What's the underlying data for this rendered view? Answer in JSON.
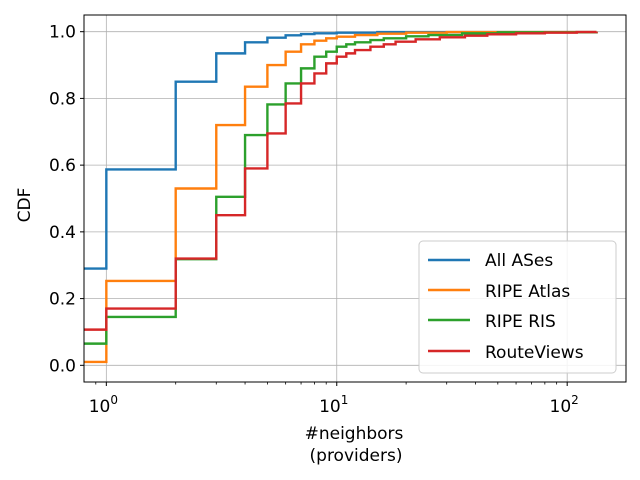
{
  "chart_data": {
    "type": "line",
    "step": "post",
    "xscale": "log",
    "xlabel_line1": "#neighbors",
    "xlabel_line2": "(providers)",
    "ylabel": "CDF",
    "xlim": [
      0.8,
      180
    ],
    "ylim": [
      -0.05,
      1.05
    ],
    "grid": true,
    "legend_position": "lower-right",
    "x_ticks": [
      {
        "value": 1,
        "base": "10",
        "exp": "0"
      },
      {
        "value": 10,
        "base": "10",
        "exp": "1"
      },
      {
        "value": 100,
        "base": "10",
        "exp": "2"
      }
    ],
    "y_ticks": [
      {
        "value": 0.0,
        "label": "0.0"
      },
      {
        "value": 0.2,
        "label": "0.2"
      },
      {
        "value": 0.4,
        "label": "0.4"
      },
      {
        "value": 0.6,
        "label": "0.6"
      },
      {
        "value": 0.8,
        "label": "0.8"
      },
      {
        "value": 1.0,
        "label": "1.0"
      }
    ],
    "series": [
      {
        "name": "All ASes",
        "color": "#1f77b4",
        "points": [
          [
            0.8,
            0.29
          ],
          [
            1,
            0.587
          ],
          [
            2,
            0.85
          ],
          [
            3,
            0.935
          ],
          [
            4,
            0.968
          ],
          [
            5,
            0.982
          ],
          [
            6,
            0.989
          ],
          [
            7,
            0.993
          ],
          [
            8,
            0.995
          ],
          [
            10,
            0.997
          ],
          [
            15,
            0.999
          ],
          [
            134,
            1.0
          ]
        ]
      },
      {
        "name": "RIPE Atlas",
        "color": "#ff7f0e",
        "points": [
          [
            0.8,
            0.01
          ],
          [
            1,
            0.253
          ],
          [
            2,
            0.53
          ],
          [
            3,
            0.72
          ],
          [
            4,
            0.835
          ],
          [
            5,
            0.9
          ],
          [
            6,
            0.94
          ],
          [
            7,
            0.962
          ],
          [
            8,
            0.973
          ],
          [
            9,
            0.98
          ],
          [
            10,
            0.985
          ],
          [
            12,
            0.99
          ],
          [
            15,
            0.994
          ],
          [
            20,
            0.997
          ],
          [
            30,
            0.999
          ],
          [
            134,
            1.0
          ]
        ]
      },
      {
        "name": "RIPE RIS",
        "color": "#2ca02c",
        "points": [
          [
            0.8,
            0.065
          ],
          [
            1,
            0.145
          ],
          [
            2,
            0.318
          ],
          [
            3,
            0.505
          ],
          [
            4,
            0.69
          ],
          [
            5,
            0.782
          ],
          [
            6,
            0.845
          ],
          [
            7,
            0.89
          ],
          [
            8,
            0.925
          ],
          [
            9,
            0.94
          ],
          [
            10,
            0.955
          ],
          [
            11,
            0.962
          ],
          [
            12,
            0.968
          ],
          [
            14,
            0.975
          ],
          [
            16,
            0.98
          ],
          [
            20,
            0.986
          ],
          [
            25,
            0.99
          ],
          [
            35,
            0.995
          ],
          [
            50,
            0.998
          ],
          [
            134,
            1.0
          ]
        ]
      },
      {
        "name": "RouteViews",
        "color": "#d62728",
        "points": [
          [
            0.8,
            0.107
          ],
          [
            1,
            0.17
          ],
          [
            2,
            0.32
          ],
          [
            3,
            0.45
          ],
          [
            4,
            0.59
          ],
          [
            5,
            0.695
          ],
          [
            6,
            0.785
          ],
          [
            7,
            0.845
          ],
          [
            8,
            0.875
          ],
          [
            9,
            0.905
          ],
          [
            10,
            0.925
          ],
          [
            11,
            0.935
          ],
          [
            12,
            0.945
          ],
          [
            14,
            0.955
          ],
          [
            16,
            0.962
          ],
          [
            18,
            0.97
          ],
          [
            22,
            0.977
          ],
          [
            28,
            0.983
          ],
          [
            36,
            0.988
          ],
          [
            45,
            0.992
          ],
          [
            60,
            0.995
          ],
          [
            80,
            0.997
          ],
          [
            110,
            0.999
          ],
          [
            134,
            1.0
          ]
        ]
      }
    ]
  }
}
